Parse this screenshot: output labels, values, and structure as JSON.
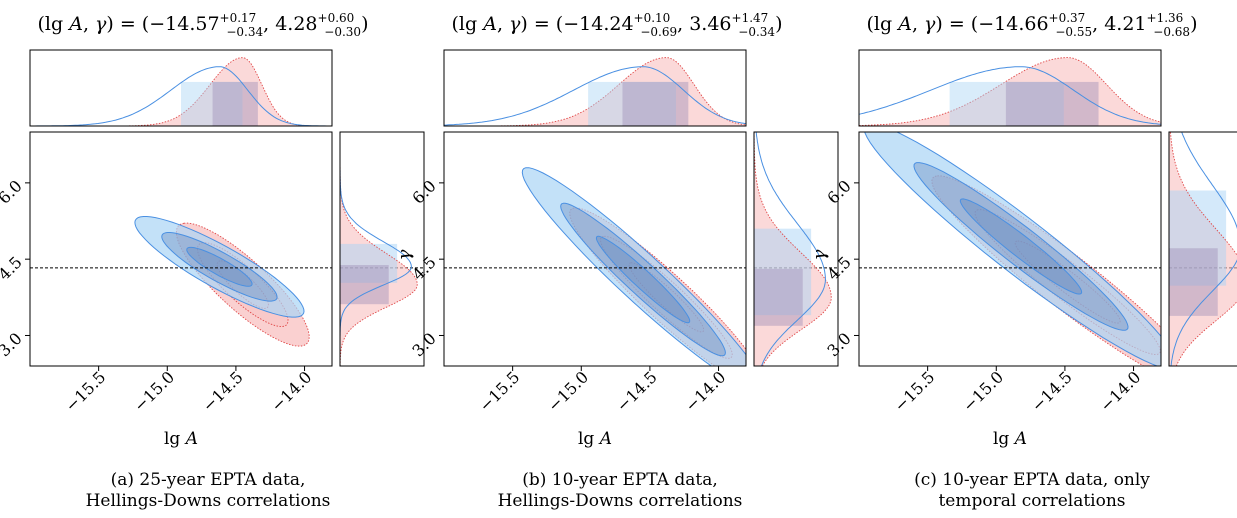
{
  "figure": {
    "panels": [
      {
        "title_lhs": "(lg A, γ) = ",
        "lgA": {
          "median": "−14.57",
          "plus": "+0.17",
          "minus": "−0.34"
        },
        "gamma": {
          "median": "4.28",
          "plus": "+0.60",
          "minus": "−0.30"
        },
        "caption_line1": "(a) 25-year EPTA data,",
        "caption_line2": "Hellings-Downs correlations"
      },
      {
        "title_lhs": "(lg A, γ) = ",
        "lgA": {
          "median": "−14.24",
          "plus": "+0.10",
          "minus": "−0.69"
        },
        "gamma": {
          "median": "3.46",
          "plus": "+1.47",
          "minus": "−0.34"
        },
        "caption_line1": "(b) 10-year EPTA data,",
        "caption_line2": "Hellings-Downs correlations"
      },
      {
        "title_lhs": "(lg A, γ) = ",
        "lgA": {
          "median": "−14.66",
          "plus": "+0.37",
          "minus": "−0.55"
        },
        "gamma": {
          "median": "4.21",
          "plus": "+1.36",
          "minus": "−0.68"
        },
        "caption_line1": "(c) 10-year EPTA data, only",
        "caption_line2": "temporal correlations"
      }
    ]
  },
  "chart_data": [
    {
      "type": "contour",
      "xlabel": "lg A",
      "ylabel": "γ",
      "xlim": [
        -16.0,
        -13.8
      ],
      "ylim": [
        2.4,
        7.0
      ],
      "xticks": [
        "−15.5",
        "−15.0",
        "−14.5",
        "−14.0"
      ],
      "yticks": [
        "3.0",
        "4.5",
        "6.0"
      ],
      "reference_gamma": 4.33,
      "colors": {
        "blue": "#4a90e2",
        "blue_fill": "#aad4f5",
        "red": "#e04848",
        "red_fill": "#f8c0c0"
      },
      "blue": {
        "cx": -14.62,
        "cy": 4.35,
        "sx": 0.28,
        "sy": 0.45,
        "rho": -0.88,
        "xmax": -14.3
      },
      "red": {
        "cx": -14.45,
        "cy": 4.0,
        "sx": 0.22,
        "sy": 0.55,
        "rho": -0.85
      }
    },
    {
      "type": "contour",
      "xlabel": "lg A",
      "ylabel": "γ",
      "xlim": [
        -16.0,
        -13.8
      ],
      "ylim": [
        2.4,
        7.0
      ],
      "xticks": [
        "−15.5",
        "−15.0",
        "−14.5",
        "−14.0"
      ],
      "yticks": [
        "3.0",
        "4.5",
        "6.0"
      ],
      "reference_gamma": 4.33,
      "colors": {
        "blue": "#4a90e2",
        "blue_fill": "#aad4f5",
        "red": "#e04848",
        "red_fill": "#f8c0c0"
      },
      "blue": {
        "cx": -14.55,
        "cy": 4.1,
        "sx": 0.4,
        "sy": 1.0,
        "rho": -0.96
      },
      "red": {
        "cx": -14.38,
        "cy": 3.75,
        "sx": 0.32,
        "sy": 0.8,
        "rho": -0.94
      }
    },
    {
      "type": "contour",
      "xlabel": "lg A",
      "ylabel": "γ",
      "xlim": [
        -16.0,
        -13.8
      ],
      "ylim": [
        2.4,
        7.0
      ],
      "xticks": [
        "−15.5",
        "−15.0",
        "−14.5",
        "−14.0"
      ],
      "yticks": [
        "3.0",
        "4.5",
        "6.0"
      ],
      "reference_gamma": 4.33,
      "colors": {
        "blue": "#4a90e2",
        "blue_fill": "#aad4f5",
        "red": "#e04848",
        "red_fill": "#f8c0c0"
      },
      "blue": {
        "cx": -14.82,
        "cy": 4.75,
        "sx": 0.52,
        "sy": 1.1,
        "rho": -0.96
      },
      "red": {
        "cx": -14.48,
        "cy": 4.05,
        "sx": 0.45,
        "sy": 0.95,
        "rho": -0.95
      }
    }
  ]
}
